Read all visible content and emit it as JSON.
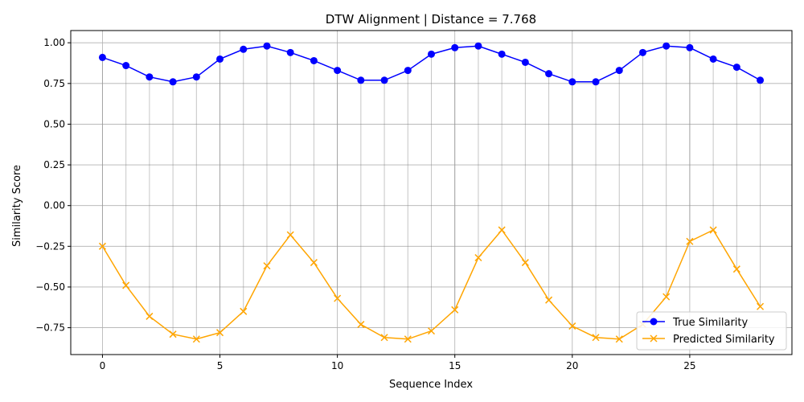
{
  "chart_data": {
    "type": "line",
    "title": "DTW Alignment | Distance = 7.768",
    "xlabel": "Sequence Index",
    "ylabel": "Similarity Score",
    "xlim": [
      -1.35,
      29.35
    ],
    "ylim": [
      -0.915,
      1.075
    ],
    "xticks": [
      0,
      5,
      10,
      15,
      20,
      25
    ],
    "xtick_labels": [
      "0",
      "5",
      "10",
      "15",
      "20",
      "25"
    ],
    "yticks": [
      -0.75,
      -0.5,
      -0.25,
      0.0,
      0.25,
      0.5,
      0.75,
      1.0
    ],
    "ytick_labels": [
      "−0.75",
      "−0.50",
      "−0.25",
      "0.00",
      "0.25",
      "0.50",
      "0.75",
      "1.00"
    ],
    "grid": true,
    "legend_position": "lower-right",
    "x": [
      0,
      1,
      2,
      3,
      4,
      5,
      6,
      7,
      8,
      9,
      10,
      11,
      12,
      13,
      14,
      15,
      16,
      17,
      18,
      19,
      20,
      21,
      22,
      23,
      24,
      25,
      26,
      27,
      28
    ],
    "series": [
      {
        "name": "True Similarity",
        "color": "#0000ff",
        "marker": "circle",
        "values": [
          0.91,
          0.86,
          0.79,
          0.76,
          0.79,
          0.9,
          0.96,
          0.98,
          0.94,
          0.89,
          0.83,
          0.77,
          0.77,
          0.83,
          0.93,
          0.97,
          0.98,
          0.93,
          0.88,
          0.81,
          0.76,
          0.76,
          0.83,
          0.94,
          0.98,
          0.97,
          0.9,
          0.85,
          0.77
        ]
      },
      {
        "name": "Predicted Similarity",
        "color": "#ffa500",
        "marker": "x",
        "values": [
          -0.25,
          -0.49,
          -0.68,
          -0.79,
          -0.82,
          -0.78,
          -0.65,
          -0.37,
          -0.18,
          -0.35,
          -0.57,
          -0.73,
          -0.81,
          -0.82,
          -0.77,
          -0.64,
          -0.32,
          -0.15,
          -0.35,
          -0.58,
          -0.74,
          -0.81,
          -0.82,
          -0.73,
          -0.56,
          -0.22,
          -0.15,
          -0.39,
          -0.62
        ]
      }
    ],
    "alignment_pairs": [
      [
        0,
        0
      ],
      [
        1,
        1
      ],
      [
        2,
        2
      ],
      [
        3,
        3
      ],
      [
        4,
        4
      ],
      [
        5,
        5
      ],
      [
        6,
        6
      ],
      [
        7,
        7
      ],
      [
        8,
        8
      ],
      [
        9,
        9
      ],
      [
        10,
        10
      ],
      [
        11,
        11
      ],
      [
        12,
        12
      ],
      [
        13,
        13
      ],
      [
        14,
        14
      ],
      [
        15,
        15
      ],
      [
        16,
        16
      ],
      [
        17,
        17
      ],
      [
        18,
        18
      ],
      [
        19,
        19
      ],
      [
        20,
        20
      ],
      [
        21,
        21
      ],
      [
        22,
        22
      ],
      [
        23,
        23
      ],
      [
        24,
        24
      ],
      [
        25,
        25
      ],
      [
        26,
        26
      ],
      [
        27,
        27
      ],
      [
        28,
        28
      ]
    ]
  }
}
